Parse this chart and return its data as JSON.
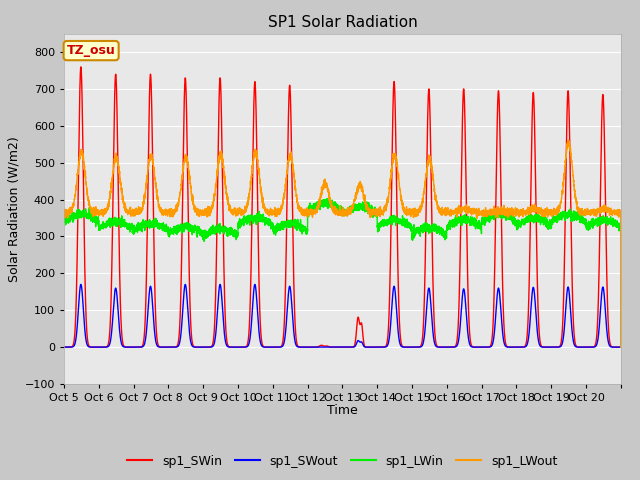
{
  "title": "SP1 Solar Radiation",
  "xlabel": "Time",
  "ylabel": "Solar Radiation (W/m2)",
  "ylim": [
    -100,
    850
  ],
  "yticks": [
    -100,
    0,
    100,
    200,
    300,
    400,
    500,
    600,
    700,
    800
  ],
  "x_labels": [
    "Oct 5",
    "Oct 6",
    "Oct 7",
    "Oct 8",
    "Oct 9",
    "Oct 10",
    "Oct 11",
    "Oct 12",
    "Oct 13",
    "Oct 14",
    "Oct 15",
    "Oct 16",
    "Oct 17",
    "Oct 18",
    "Oct 19",
    "Oct 20"
  ],
  "colors": {
    "SWin": "#ff0000",
    "SWout": "#0000ff",
    "LWin": "#00ee00",
    "LWout": "#ff9900"
  },
  "legend_labels": [
    "sp1_SWin",
    "sp1_SWout",
    "sp1_LWin",
    "sp1_LWout"
  ],
  "annotation_text": "TZ_osu",
  "annotation_color": "#cc0000",
  "annotation_bg": "#ffffcc",
  "fig_bg": "#c8c8c8",
  "plot_bg": "#e8e8e8",
  "grid_color": "#ffffff",
  "line_width": 1.0,
  "num_days": 16,
  "points_per_day": 288,
  "figsize": [
    6.4,
    4.8
  ],
  "dpi": 100
}
